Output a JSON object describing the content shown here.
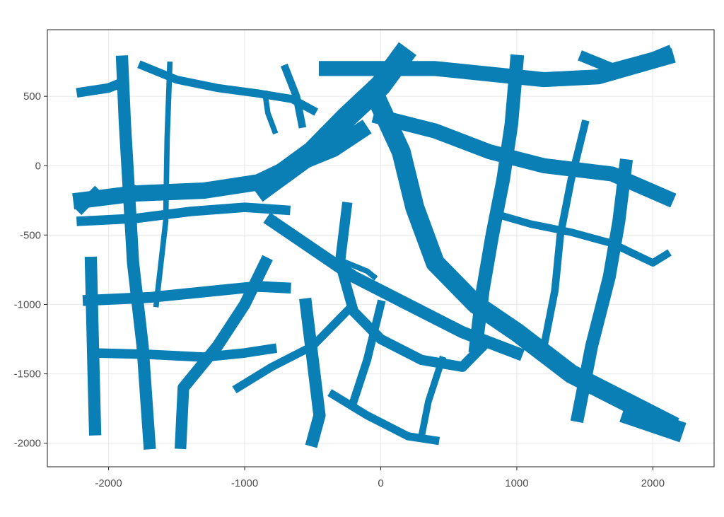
{
  "chart_data": {
    "type": "map",
    "description_kind": "binary raster map of a road network (filled regions)",
    "fill_color": "#0A7FB5",
    "grid": true,
    "xlim": [
      -2450,
      2450
    ],
    "ylim": [
      -2170,
      980
    ],
    "x_ticks": [
      -2000,
      -1000,
      0,
      1000,
      2000
    ],
    "x_tick_labels": [
      "-2000",
      "-1000",
      "0",
      "1000",
      "2000"
    ],
    "y_ticks": [
      -2000,
      -1500,
      -1000,
      -500,
      0,
      500
    ],
    "y_tick_labels": [
      "-2000",
      "-1500",
      "-1000",
      "-500",
      "0",
      "500"
    ],
    "xlabel": "",
    "ylabel": "",
    "title": "",
    "roads": [
      {
        "name": "r-top-left-stub",
        "points": [
          [
            -2200,
            530
          ],
          [
            -2000,
            560
          ],
          [
            -1900,
            600
          ]
        ],
        "width": 70
      },
      {
        "name": "r-west-upper-horizontal",
        "points": [
          [
            -2200,
            -250
          ],
          [
            -1800,
            -200
          ],
          [
            -1300,
            -180
          ],
          [
            -900,
            -120
          ],
          [
            -600,
            20
          ],
          [
            -350,
            120
          ],
          [
            -150,
            250
          ]
        ],
        "width": 120
      },
      {
        "name": "r-west-lower-horizontal",
        "points": [
          [
            -2200,
            -400
          ],
          [
            -1800,
            -380
          ],
          [
            -1400,
            -330
          ],
          [
            -1000,
            -300
          ],
          [
            -700,
            -320
          ]
        ],
        "width": 70
      },
      {
        "name": "r-west-vertical-1",
        "points": [
          [
            -1900,
            750
          ],
          [
            -1880,
            300
          ],
          [
            -1850,
            -200
          ],
          [
            -1820,
            -700
          ],
          [
            -1750,
            -1300
          ],
          [
            -1700,
            -2000
          ]
        ],
        "width": 90
      },
      {
        "name": "r-west-vertical-2",
        "points": [
          [
            -1550,
            730
          ],
          [
            -1570,
            200
          ],
          [
            -1580,
            -400
          ],
          [
            -1650,
            -1000
          ]
        ],
        "width": 40
      },
      {
        "name": "r-far-west-vertical",
        "points": [
          [
            -2130,
            -700
          ],
          [
            -2120,
            -1100
          ],
          [
            -2110,
            -1500
          ],
          [
            -2100,
            -1900
          ]
        ],
        "width": 90
      },
      {
        "name": "r-north-diagonal-main",
        "points": [
          [
            -850,
            -150
          ],
          [
            -500,
            100
          ],
          [
            -250,
            350
          ],
          [
            0,
            580
          ],
          [
            150,
            780
          ]
        ],
        "width": 160
      },
      {
        "name": "r-north-left-branch",
        "points": [
          [
            -1750,
            720
          ],
          [
            -1500,
            620
          ],
          [
            -1200,
            560
          ],
          [
            -900,
            520
          ],
          [
            -650,
            480
          ],
          [
            -500,
            400
          ]
        ],
        "width": 60
      },
      {
        "name": "r-north-spur",
        "points": [
          [
            -850,
            520
          ],
          [
            -830,
            380
          ],
          [
            -780,
            250
          ]
        ],
        "width": 40
      },
      {
        "name": "r-north-fork",
        "points": [
          [
            -700,
            700
          ],
          [
            -620,
            500
          ],
          [
            -580,
            300
          ]
        ],
        "width": 55
      },
      {
        "name": "r-top-long-horizontal",
        "points": [
          [
            -400,
            700
          ],
          [
            0,
            700
          ],
          [
            400,
            700
          ],
          [
            800,
            660
          ],
          [
            1200,
            620
          ],
          [
            1600,
            640
          ],
          [
            2100,
            780
          ]
        ],
        "width": 110
      },
      {
        "name": "r-upper-right-diagonal",
        "points": [
          [
            0,
            350
          ],
          [
            400,
            250
          ],
          [
            800,
            100
          ],
          [
            1200,
            0
          ],
          [
            1700,
            -60
          ],
          [
            2100,
            -230
          ]
        ],
        "width": 110
      },
      {
        "name": "r-right-vertical-1",
        "points": [
          [
            1000,
            750
          ],
          [
            960,
            300
          ],
          [
            900,
            -100
          ],
          [
            820,
            -500
          ],
          [
            750,
            -900
          ],
          [
            700,
            -1300
          ]
        ],
        "width": 100
      },
      {
        "name": "r-right-vertical-2",
        "points": [
          [
            1500,
            300
          ],
          [
            1400,
            -100
          ],
          [
            1320,
            -500
          ],
          [
            1280,
            -900
          ],
          [
            1200,
            -1300
          ]
        ],
        "width": 55
      },
      {
        "name": "r-right-vertical-3",
        "points": [
          [
            1800,
            0
          ],
          [
            1750,
            -400
          ],
          [
            1680,
            -800
          ],
          [
            1550,
            -1300
          ],
          [
            1450,
            -1800
          ]
        ],
        "width": 95
      },
      {
        "name": "r-center-diagonal-down",
        "points": [
          [
            0,
            420
          ],
          [
            150,
            100
          ],
          [
            250,
            -300
          ],
          [
            400,
            -700
          ],
          [
            700,
            -1000
          ],
          [
            1000,
            -1200
          ],
          [
            1400,
            -1500
          ],
          [
            2100,
            -1850
          ]
        ],
        "width": 140
      },
      {
        "name": "r-east-middle-horizontal",
        "points": [
          [
            850,
            -350
          ],
          [
            1100,
            -420
          ],
          [
            1400,
            -480
          ],
          [
            1700,
            -560
          ],
          [
            2000,
            -700
          ],
          [
            2100,
            -640
          ]
        ],
        "width": 55
      },
      {
        "name": "r-central-left-diagonal",
        "points": [
          [
            -800,
            -400
          ],
          [
            -500,
            -600
          ],
          [
            -200,
            -800
          ],
          [
            200,
            -1000
          ],
          [
            600,
            -1200
          ],
          [
            1000,
            -1350
          ]
        ],
        "width": 90
      },
      {
        "name": "r-mid-horizontal-west",
        "points": [
          [
            -2150,
            -970
          ],
          [
            -1700,
            -950
          ],
          [
            -1200,
            -900
          ],
          [
            -900,
            -870
          ],
          [
            -700,
            -880
          ]
        ],
        "width": 80
      },
      {
        "name": "r-lower-horizontal-west",
        "points": [
          [
            -2100,
            -1350
          ],
          [
            -1700,
            -1360
          ],
          [
            -1300,
            -1380
          ],
          [
            -1000,
            -1350
          ],
          [
            -800,
            -1320
          ]
        ],
        "width": 70
      },
      {
        "name": "r-curve-center",
        "points": [
          [
            -250,
            -300
          ],
          [
            -300,
            -700
          ],
          [
            -200,
            -1050
          ],
          [
            0,
            -1250
          ],
          [
            300,
            -1400
          ],
          [
            600,
            -1450
          ],
          [
            750,
            -1300
          ]
        ],
        "width": 75
      },
      {
        "name": "r-south-curve-left",
        "points": [
          [
            -850,
            -700
          ],
          [
            -1000,
            -1000
          ],
          [
            -1200,
            -1300
          ],
          [
            -1450,
            -1600
          ],
          [
            -1470,
            -2000
          ]
        ],
        "width": 85
      },
      {
        "name": "r-south-diagonal-1",
        "points": [
          [
            -250,
            -1050
          ],
          [
            -500,
            -1300
          ],
          [
            -800,
            -1450
          ],
          [
            -1050,
            -1600
          ]
        ],
        "width": 60
      },
      {
        "name": "r-south-diagonal-2",
        "points": [
          [
            -350,
            -1650
          ],
          [
            -100,
            -1800
          ],
          [
            200,
            -1950
          ],
          [
            400,
            -1980
          ]
        ],
        "width": 60
      },
      {
        "name": "r-south-vertical",
        "points": [
          [
            -550,
            -1000
          ],
          [
            -500,
            -1400
          ],
          [
            -450,
            -1800
          ],
          [
            -500,
            -1980
          ]
        ],
        "width": 90
      },
      {
        "name": "r-south-center-vertical",
        "points": [
          [
            0,
            -1000
          ],
          [
            -100,
            -1400
          ],
          [
            -200,
            -1700
          ]
        ],
        "width": 60
      },
      {
        "name": "r-south-east-vertical",
        "points": [
          [
            450,
            -1400
          ],
          [
            350,
            -1700
          ],
          [
            300,
            -1950
          ]
        ],
        "width": 50
      },
      {
        "name": "r-se-corner-block",
        "points": [
          [
            1850,
            -1800
          ],
          [
            2000,
            -1850
          ],
          [
            2150,
            -1900
          ]
        ],
        "width": 150
      },
      {
        "name": "r-hook-center",
        "points": [
          [
            -250,
            -700
          ],
          [
            -100,
            -760
          ],
          [
            -50,
            -800
          ]
        ],
        "width": 40
      },
      {
        "name": "r-top-right-connector",
        "points": [
          [
            1500,
            780
          ],
          [
            1700,
            700
          ],
          [
            2000,
            780
          ],
          [
            2100,
            820
          ]
        ],
        "width": 80
      },
      {
        "name": "r-west-upper-left-block",
        "points": [
          [
            -2200,
            -300
          ],
          [
            -2150,
            -250
          ],
          [
            -2100,
            -200
          ]
        ],
        "width": 80
      }
    ]
  }
}
